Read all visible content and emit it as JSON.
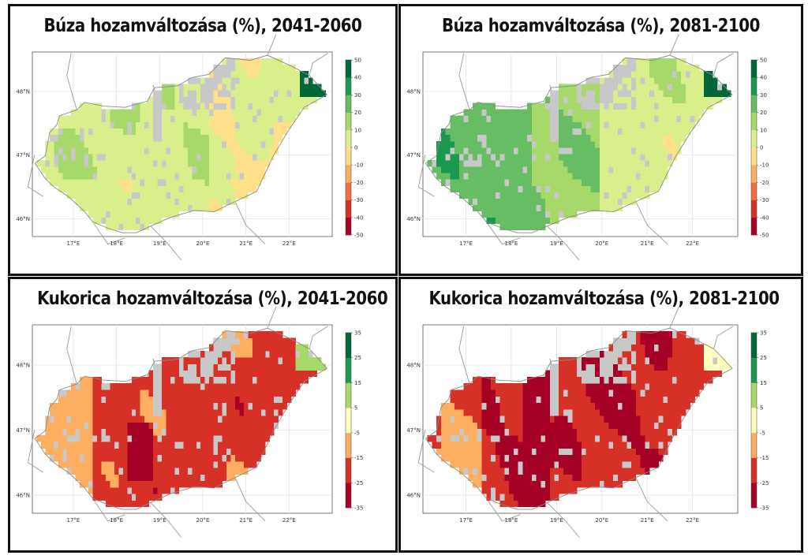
{
  "colors": {
    "wheat_scale": [
      "#a50026",
      "#d73027",
      "#f46d43",
      "#fdae61",
      "#fee08b",
      "#d9ef8b",
      "#a6d96a",
      "#66bd63",
      "#1a9850",
      "#006837"
    ],
    "maize_scale": [
      "#a50026",
      "#d73027",
      "#fdae61",
      "#ffffbf",
      "#a6d96a",
      "#1a9850",
      "#006837"
    ],
    "no_data": "#c8c8c8",
    "border": "#9a9a9a"
  },
  "axes": {
    "lon_ticks": [
      "17°E",
      "18°E",
      "19°E",
      "20°E",
      "21°E",
      "22°E"
    ],
    "lat_ticks": [
      "48°N",
      "47°N",
      "46°N"
    ]
  },
  "panels": [
    {
      "title": "Búza hozamváltozása (%), 2041-2060",
      "colorbar_ticks": [
        "50",
        "40",
        "30",
        "20",
        "10",
        "0",
        "-10",
        "-20",
        "-30",
        "-40",
        "-50"
      ],
      "scale": "wheat",
      "dominant_class": "slight increase (0–20%)"
    },
    {
      "title": "Búza hozamváltozása (%), 2081-2100",
      "colorbar_ticks": [
        "50",
        "40",
        "30",
        "20",
        "10",
        "0",
        "-10",
        "-20",
        "-30",
        "-40",
        "-50"
      ],
      "scale": "wheat",
      "dominant_class": "increase (10–30%)"
    },
    {
      "title": "Kukorica hozamváltozása (%), 2041-2060",
      "colorbar_ticks": [
        "35",
        "25",
        "15",
        "5",
        "-5",
        "-15",
        "-25",
        "-35"
      ],
      "scale": "maize",
      "dominant_class": "decrease (-15 to -25%)"
    },
    {
      "title": "Kukorica hozamváltozása (%), 2081-2100",
      "colorbar_ticks": [
        "35",
        "25",
        "15",
        "5",
        "-5",
        "-15",
        "-25",
        "-35"
      ],
      "scale": "maize",
      "dominant_class": "strong decrease (-25 to -35%)"
    }
  ]
}
